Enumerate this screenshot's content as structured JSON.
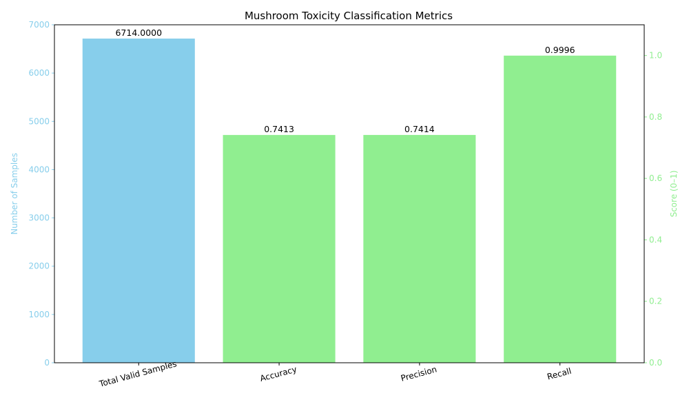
{
  "chart_data": {
    "type": "bar",
    "title": "Mushroom Toxicity Classification Metrics",
    "categories": [
      "Total Valid Samples",
      "Accuracy",
      "Precision",
      "Recall"
    ],
    "values": [
      6714.0,
      0.7413,
      0.7414,
      0.9996
    ],
    "value_labels": [
      "6714.0000",
      "0.7413",
      "0.7414",
      "0.9996"
    ],
    "bar_axis": [
      "left",
      "right",
      "right",
      "right"
    ],
    "bar_colors": [
      "#87ceeb",
      "#90ee90",
      "#90ee90",
      "#90ee90"
    ],
    "left_axis": {
      "label": "Number of Samples",
      "color": "#87ceeb",
      "ylim": [
        0,
        7000
      ],
      "ticks": [
        0,
        1000,
        2000,
        3000,
        4000,
        5000,
        6000,
        7000
      ],
      "tick_labels": [
        "0",
        "1000",
        "2000",
        "3000",
        "4000",
        "5000",
        "6000",
        "7000"
      ]
    },
    "right_axis": {
      "label": "Score (0–1)",
      "color": "#90ee90",
      "ylim": [
        0,
        1.1
      ],
      "ticks": [
        0,
        0.2,
        0.4,
        0.6,
        0.8,
        1.0
      ],
      "tick_labels": [
        "0.0",
        "0.2",
        "0.4",
        "0.6",
        "0.8",
        "1.0"
      ]
    },
    "grid": false,
    "legend": "none"
  }
}
